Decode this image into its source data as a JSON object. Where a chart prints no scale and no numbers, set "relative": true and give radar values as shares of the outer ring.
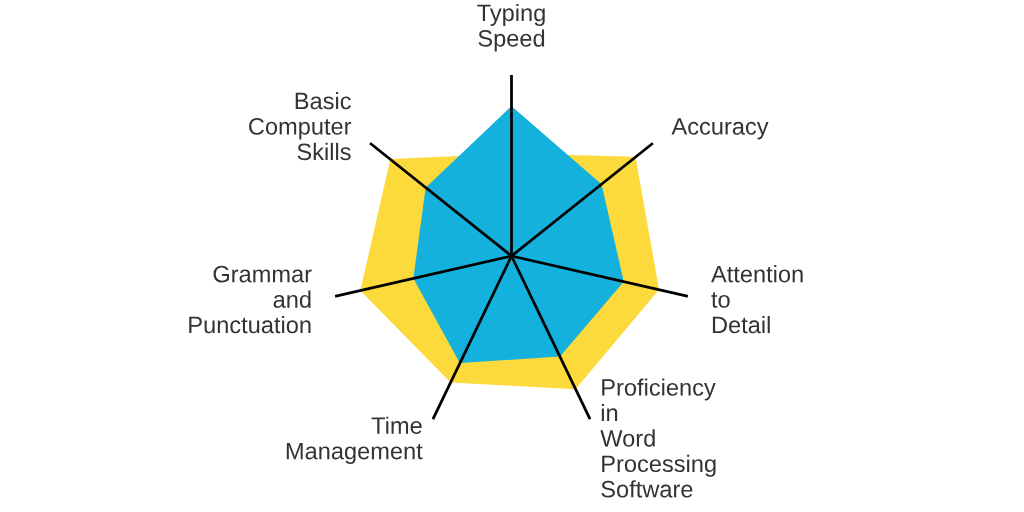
{
  "chart_data": {
    "type": "radar",
    "relative": true,
    "grid": "x",
    "categories": [
      "Typing Speed",
      "Accuracy",
      "Attention to Detail",
      "Proficiency in Word Processing Software",
      "Time Management",
      "Grammar and Punctuation",
      "Basic Computer Skills"
    ],
    "series": [
      {
        "color": "#fdda3c",
        "values": [
          0.56,
          0.87,
          0.83,
          0.81,
          0.77,
          0.85,
          0.85
        ]
      },
      {
        "color": "#14b1dc",
        "values": [
          0.82,
          0.63,
          0.63,
          0.61,
          0.65,
          0.55,
          0.6
        ]
      }
    ]
  }
}
